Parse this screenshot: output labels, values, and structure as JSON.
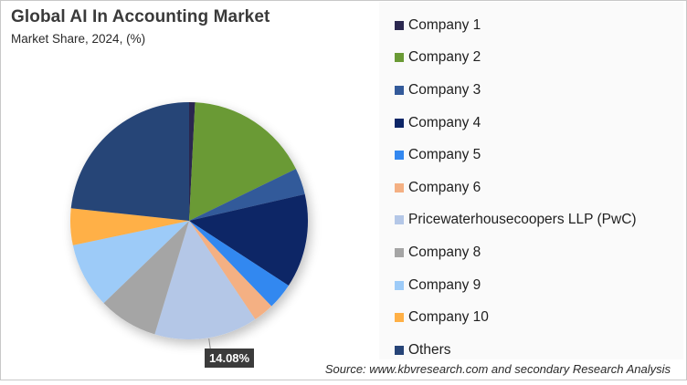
{
  "chart_data": {
    "type": "pie",
    "title": "Global AI In Accounting Market",
    "subtitle": "Market Share, 2024, (%)",
    "categories": [
      "Company 1",
      "Company 2",
      "Company 3",
      "Company 4",
      "Company 5",
      "Company 6",
      "Pricewaterhousecoopers LLP (PwC)",
      "Company 8",
      "Company 9",
      "Company 10",
      "Others"
    ],
    "values": [
      0.8,
      17.0,
      3.6,
      12.8,
      3.6,
      2.8,
      14.08,
      8.1,
      8.9,
      5.0,
      23.32
    ],
    "colors": [
      "#2b2850",
      "#6a9a35",
      "#335a9a",
      "#0c2566",
      "#3388f0",
      "#f4b083",
      "#b4c7e7",
      "#a5a5a5",
      "#9dcbf8",
      "#ffb046",
      "#264477"
    ],
    "start_angle_deg": 0,
    "direction": "clockwise",
    "annotations": [
      {
        "category": "Pricewaterhousecoopers LLP (PwC)",
        "label": "14.08%"
      }
    ],
    "legend_position": "right"
  },
  "header": {
    "title": "Global AI In Accounting Market",
    "subtitle": "Market Share, 2024, (%)"
  },
  "legend": {
    "items": [
      {
        "label": "Company 1",
        "color": "#2b2850"
      },
      {
        "label": "Company 2",
        "color": "#6a9a35"
      },
      {
        "label": "Company 3",
        "color": "#335a9a"
      },
      {
        "label": "Company 4",
        "color": "#0c2566"
      },
      {
        "label": "Company 5",
        "color": "#3388f0"
      },
      {
        "label": "Company 6",
        "color": "#f4b083"
      },
      {
        "label": "Pricewaterhousecoopers LLP (PwC)",
        "color": "#b4c7e7"
      },
      {
        "label": "Company 8",
        "color": "#a5a5a5"
      },
      {
        "label": "Company 9",
        "color": "#9dcbf8"
      },
      {
        "label": "Company 10",
        "color": "#ffb046"
      },
      {
        "label": "Others",
        "color": "#264477"
      }
    ]
  },
  "data_label": "14.08%",
  "source": "Source: www.kbvresearch.com and secondary Research Analysis"
}
